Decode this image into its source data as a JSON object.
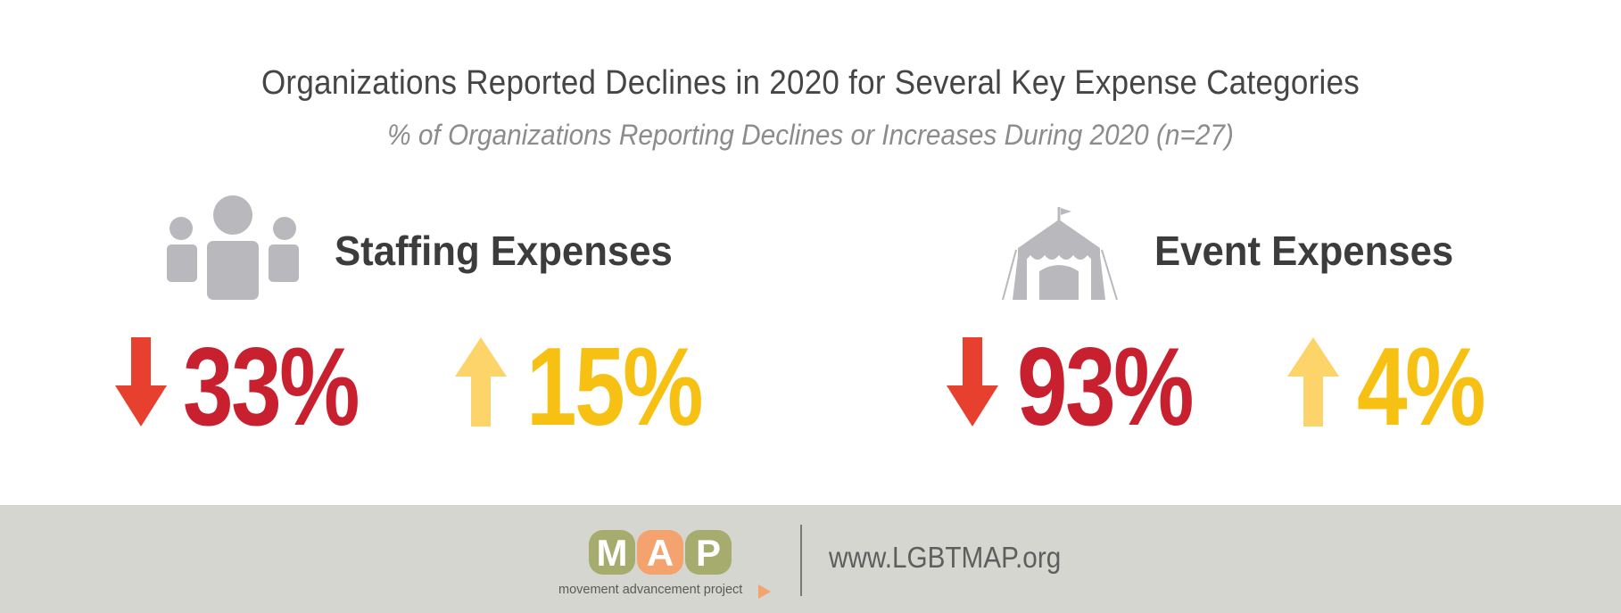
{
  "title": "Organizations Reported Declines in 2020 for Several Key Expense Categories",
  "subtitle": "% of Organizations Reporting Declines or Increases During 2020 (n=27)",
  "categories": [
    {
      "name": "Staffing Expenses",
      "icon": "people-icon",
      "decline": "33%",
      "increase": "15%"
    },
    {
      "name": "Event Expenses",
      "icon": "tent-icon",
      "decline": "93%",
      "increase": "4%"
    }
  ],
  "colors": {
    "decline_arrow": "#e8402f",
    "decline_text": "#c8202f",
    "increase_arrow": "#fdd46a",
    "increase_text": "#f7c114",
    "icon_gray": "#b9b8bd",
    "footer_bg": "#d6d6d1"
  },
  "footer": {
    "logo_letters": [
      "M",
      "A",
      "P"
    ],
    "logo_tagline": "movement advancement project",
    "url": "www.LGBTMAP.org"
  }
}
